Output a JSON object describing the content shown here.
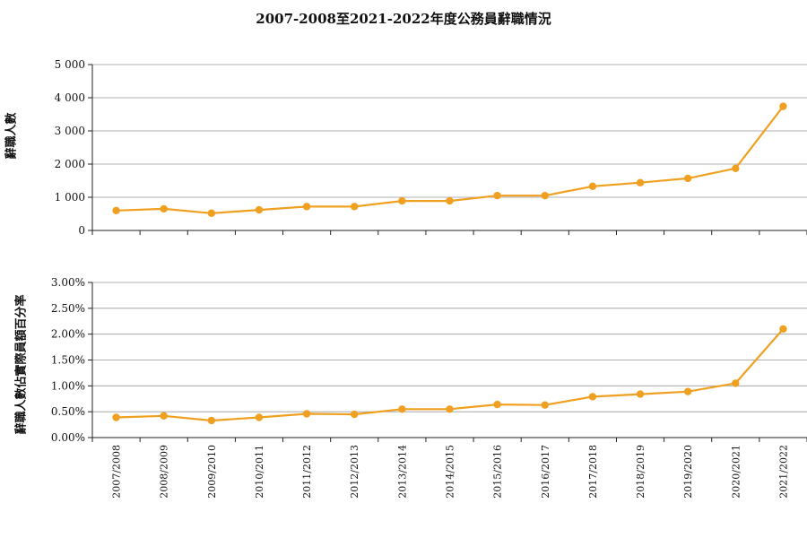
{
  "chart": {
    "title": "2007-2008至2021-2022年度公務員辭職情況",
    "series_color": "#F0A020",
    "categories": [
      "2007/2008",
      "2008/2009",
      "2009/2010",
      "2010/2011",
      "2011/2012",
      "2012/2013",
      "2013/2014",
      "2014/2015",
      "2015/2016",
      "2016/2017",
      "2017/2018",
      "2018/2019",
      "2019/2020",
      "2020/2021",
      "2021/2022"
    ]
  },
  "chart_data": [
    {
      "type": "line",
      "ylabel": "辭職人數",
      "ylim": [
        0,
        5000
      ],
      "ytick_labels": [
        "0",
        "1 000",
        "2 000",
        "3 000",
        "4 000",
        "5 000"
      ],
      "ytick_values": [
        0,
        1000,
        2000,
        3000,
        4000,
        5000
      ],
      "values": [
        600,
        650,
        520,
        620,
        720,
        720,
        890,
        890,
        1050,
        1050,
        1330,
        1440,
        1570,
        1870,
        3740
      ],
      "grid": true
    },
    {
      "type": "line",
      "ylabel": "辭職人數佔實際員額百分率",
      "ylim": [
        0,
        3.0
      ],
      "ytick_labels": [
        "0.00%",
        "0.50%",
        "1.00%",
        "1.50%",
        "2.00%",
        "2.50%",
        "3.00%"
      ],
      "ytick_values": [
        0,
        0.5,
        1.0,
        1.5,
        2.0,
        2.5,
        3.0
      ],
      "values": [
        0.39,
        0.42,
        0.33,
        0.39,
        0.46,
        0.45,
        0.55,
        0.55,
        0.64,
        0.63,
        0.79,
        0.84,
        0.89,
        1.05,
        2.1
      ],
      "grid": true
    }
  ]
}
